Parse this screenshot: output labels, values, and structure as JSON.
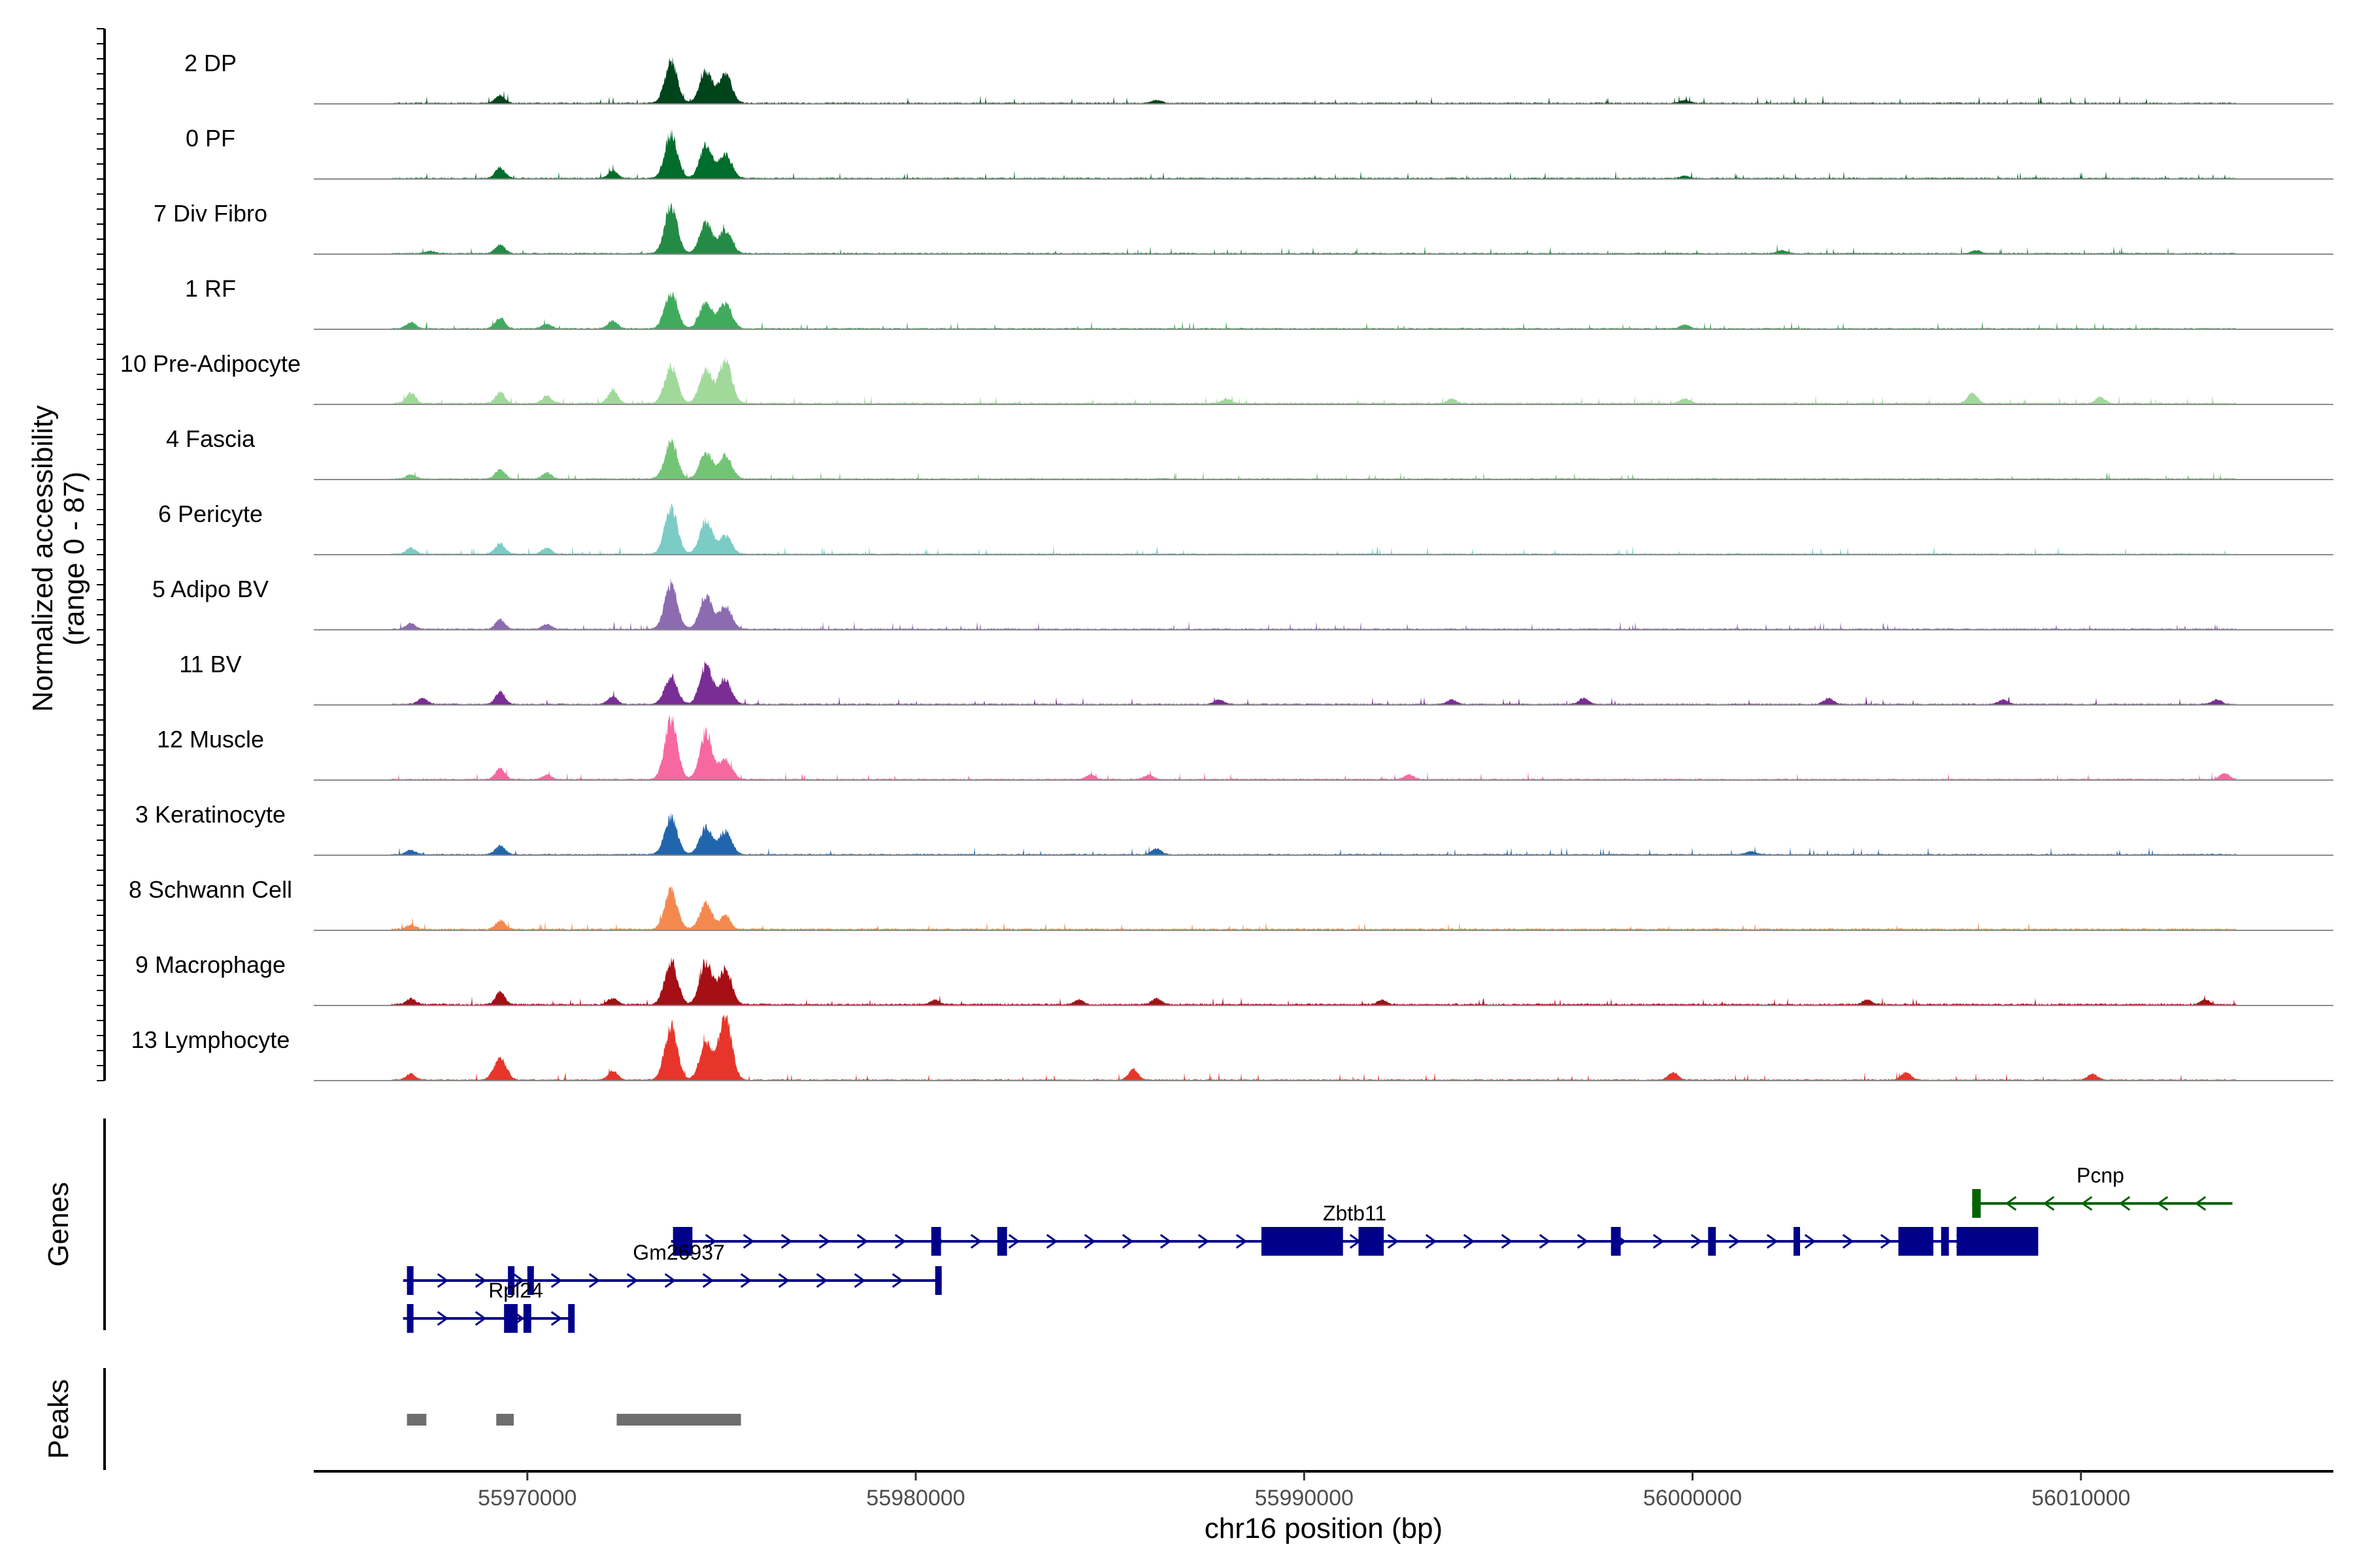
{
  "chart_data": {
    "type": "area",
    "title": "",
    "xlabel": "chr16 position (bp)",
    "ylabel": "Normalized accessibility",
    "ylabel_range": "(range 0 - 87)",
    "ylim": [
      0,
      87
    ],
    "xlim": [
      55964500,
      56016500
    ],
    "x_ticks": [
      55970000,
      55980000,
      55990000,
      56000000,
      56010000
    ],
    "x_tick_labels": [
      "55970000",
      "55980000",
      "55990000",
      "56000000",
      "56010000"
    ],
    "section_labels": {
      "genes": "Genes",
      "peaks": "Peaks"
    },
    "series": [
      {
        "name": "2 DP",
        "color": "#00441b",
        "base": 1.5,
        "amp": 1.0,
        "peaks": [
          [
            55969300,
            10
          ],
          [
            55973700,
            55
          ],
          [
            55974600,
            42
          ],
          [
            55975100,
            38
          ],
          [
            55986200,
            4
          ],
          [
            55999800,
            4
          ]
        ]
      },
      {
        "name": "0 PF",
        "color": "#006d2c",
        "base": 1.5,
        "amp": 1.0,
        "peaks": [
          [
            55969300,
            14
          ],
          [
            55972200,
            10
          ],
          [
            55973700,
            58
          ],
          [
            55974600,
            44
          ],
          [
            55975100,
            32
          ],
          [
            55999800,
            3
          ]
        ]
      },
      {
        "name": "7 Div Fibro",
        "color": "#238b45",
        "base": 1.5,
        "amp": 1.0,
        "peaks": [
          [
            55967500,
            3
          ],
          [
            55969300,
            12
          ],
          [
            55973700,
            62
          ],
          [
            55974600,
            40
          ],
          [
            55975100,
            30
          ],
          [
            56002300,
            4
          ],
          [
            56007300,
            4
          ]
        ]
      },
      {
        "name": "1 RF",
        "color": "#41ab5d",
        "base": 1.5,
        "amp": 1.0,
        "peaks": [
          [
            55967000,
            8
          ],
          [
            55969300,
            14
          ],
          [
            55970500,
            6
          ],
          [
            55972200,
            10
          ],
          [
            55973700,
            48
          ],
          [
            55974600,
            36
          ],
          [
            55975100,
            34
          ],
          [
            55999800,
            5
          ]
        ]
      },
      {
        "name": "10 Pre-Adipocyte",
        "color": "#a1d99b",
        "base": 2.0,
        "amp": 1.0,
        "peaks": [
          [
            55967000,
            14
          ],
          [
            55969300,
            14
          ],
          [
            55970500,
            10
          ],
          [
            55972200,
            18
          ],
          [
            55973700,
            50
          ],
          [
            55974600,
            44
          ],
          [
            55975100,
            58
          ],
          [
            55988000,
            6
          ],
          [
            55993800,
            6
          ],
          [
            55999800,
            6
          ],
          [
            56007200,
            14
          ],
          [
            56010500,
            8
          ]
        ]
      },
      {
        "name": "4 Fascia",
        "color": "#74c476",
        "base": 1.5,
        "amp": 1.0,
        "peaks": [
          [
            55967000,
            6
          ],
          [
            55969300,
            12
          ],
          [
            55970500,
            8
          ],
          [
            55973700,
            48
          ],
          [
            55974600,
            34
          ],
          [
            55975100,
            30
          ]
        ]
      },
      {
        "name": "6 Pericyte",
        "color": "#7bccc4",
        "base": 1.5,
        "amp": 1.0,
        "peaks": [
          [
            55967000,
            8
          ],
          [
            55969300,
            14
          ],
          [
            55970500,
            8
          ],
          [
            55973700,
            62
          ],
          [
            55974600,
            44
          ],
          [
            55975100,
            24
          ]
        ]
      },
      {
        "name": "5 Adipo BV",
        "color": "#8c6bb1",
        "base": 1.5,
        "amp": 1.0,
        "peaks": [
          [
            55967000,
            8
          ],
          [
            55969300,
            12
          ],
          [
            55970500,
            6
          ],
          [
            55973700,
            60
          ],
          [
            55974600,
            44
          ],
          [
            55975100,
            30
          ]
        ]
      },
      {
        "name": "11 BV",
        "color": "#7a2d94",
        "base": 1.5,
        "amp": 1.0,
        "peaks": [
          [
            55967300,
            8
          ],
          [
            55969300,
            16
          ],
          [
            55972200,
            10
          ],
          [
            55973700,
            36
          ],
          [
            55974600,
            52
          ],
          [
            55975100,
            30
          ],
          [
            55987800,
            6
          ],
          [
            55993800,
            6
          ],
          [
            55997200,
            8
          ],
          [
            56003500,
            8
          ],
          [
            56008000,
            6
          ],
          [
            56013500,
            6
          ]
        ]
      },
      {
        "name": "12 Muscle",
        "color": "#f768a1",
        "base": 1.5,
        "amp": 1.0,
        "peaks": [
          [
            55969300,
            14
          ],
          [
            55970500,
            6
          ],
          [
            55973700,
            82
          ],
          [
            55974600,
            60
          ],
          [
            55975100,
            26
          ],
          [
            55984500,
            6
          ],
          [
            55986000,
            6
          ],
          [
            55992700,
            6
          ],
          [
            56013700,
            8
          ]
        ]
      },
      {
        "name": "3 Keratinocyte",
        "color": "#2166ac",
        "base": 1.5,
        "amp": 1.0,
        "peaks": [
          [
            55967000,
            6
          ],
          [
            55969300,
            12
          ],
          [
            55973700,
            50
          ],
          [
            55974600,
            36
          ],
          [
            55975100,
            30
          ],
          [
            55986200,
            8
          ],
          [
            56001500,
            4
          ]
        ]
      },
      {
        "name": "8 Schwann Cell",
        "color": "#f4894f",
        "base": 2.0,
        "amp": 1.0,
        "peaks": [
          [
            55967000,
            6
          ],
          [
            55969300,
            12
          ],
          [
            55973700,
            52
          ],
          [
            55974600,
            34
          ],
          [
            55975100,
            20
          ]
        ]
      },
      {
        "name": "9 Macrophage",
        "color": "#a50f15",
        "base": 2.0,
        "amp": 1.0,
        "peaks": [
          [
            55967000,
            8
          ],
          [
            55969300,
            16
          ],
          [
            55972200,
            8
          ],
          [
            55973700,
            58
          ],
          [
            55974600,
            56
          ],
          [
            55975100,
            48
          ],
          [
            55980500,
            6
          ],
          [
            55984200,
            6
          ],
          [
            55986200,
            8
          ],
          [
            55992000,
            6
          ],
          [
            56004500,
            6
          ],
          [
            56013200,
            6
          ]
        ]
      },
      {
        "name": "13 Lymphocyte",
        "color": "#e7352b",
        "base": 1.5,
        "amp": 1.0,
        "peaks": [
          [
            55967000,
            8
          ],
          [
            55969300,
            28
          ],
          [
            55972200,
            12
          ],
          [
            55973700,
            72
          ],
          [
            55974600,
            50
          ],
          [
            55975100,
            87
          ],
          [
            55985600,
            14
          ],
          [
            55999500,
            10
          ],
          [
            56005500,
            10
          ],
          [
            56010300,
            8
          ]
        ]
      }
    ],
    "genes": [
      {
        "name": "Pcnp",
        "strand": "-",
        "color": "#006400",
        "start": 56007200,
        "end": 56013900,
        "exons": [
          [
            56007200,
            56007420
          ]
        ],
        "show_label": true
      },
      {
        "name": "Zbtb11",
        "strand": "+",
        "color": "#00008b",
        "start": 55973700,
        "end": 56008800,
        "exons": [
          [
            55973750,
            55974250
          ],
          [
            55980400,
            55980650
          ],
          [
            55982100,
            55982350
          ],
          [
            55988900,
            55991000
          ],
          [
            55991400,
            55992050
          ],
          [
            55997900,
            55998150
          ],
          [
            56000400,
            56000600
          ],
          [
            56002600,
            56002700
          ],
          [
            56005300,
            56006200
          ],
          [
            56006400,
            56006600
          ],
          [
            56006800,
            56008900
          ]
        ],
        "show_label": true
      },
      {
        "name": "Gm26937",
        "strand": "+",
        "color": "#00008b",
        "start": 55966800,
        "end": 55980600,
        "exons": [
          [
            55966900,
            55967050
          ],
          [
            55969500,
            55969650
          ],
          [
            55970000,
            55970100
          ],
          [
            55980500,
            55980650
          ]
        ],
        "show_label": true
      },
      {
        "name": "Rpl24",
        "strand": "+",
        "color": "#00008b",
        "start": 55966800,
        "end": 55971200,
        "exons": [
          [
            55966900,
            55967050
          ],
          [
            55969400,
            55969750
          ],
          [
            55969900,
            55970100
          ],
          [
            55971050,
            55971200
          ]
        ],
        "show_label": true
      }
    ],
    "peaks": [
      [
        55966900,
        55967400
      ],
      [
        55969200,
        55969650
      ],
      [
        55972300,
        55975500
      ]
    ]
  }
}
